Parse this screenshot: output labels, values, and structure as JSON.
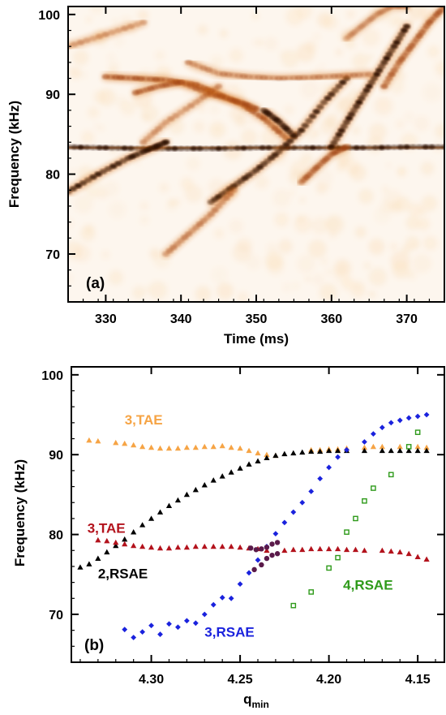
{
  "chart_data": [
    {
      "panel_label": "(a)",
      "type": "heatmap",
      "xlabel": "Time (ms)",
      "ylabel": "Frequency (kHz)",
      "xlim": [
        325,
        375
      ],
      "ylim": [
        64,
        101
      ],
      "xticks": [
        330,
        340,
        350,
        360,
        370
      ],
      "yticks": [
        70,
        80,
        90,
        100
      ],
      "colors": {
        "high": "#2a0c02",
        "mid": "#d9731e",
        "low": "#fbe3c4",
        "background": "#fdf6ee"
      },
      "ridges": [
        {
          "x": [
            325,
            330,
            335,
            340,
            345,
            350,
            355,
            360,
            365,
            370,
            375
          ],
          "y": [
            83.4,
            83.3,
            83.2,
            83.2,
            83.2,
            83.3,
            83.3,
            83.3,
            83.3,
            83.4,
            83.4
          ],
          "intensity": 0.95
        },
        {
          "x": [
            325,
            329,
            333,
            336,
            338
          ],
          "y": [
            77.8,
            80.0,
            82.0,
            83.2,
            84.0
          ],
          "intensity": 0.9
        },
        {
          "x": [
            330,
            334,
            338,
            342,
            345,
            348,
            351,
            354
          ],
          "y": [
            92.2,
            92.0,
            91.8,
            91.2,
            90.0,
            88.8,
            87.0,
            84.5
          ],
          "intensity": 0.7
        },
        {
          "x": [
            334,
            337,
            340,
            344,
            348,
            350
          ],
          "y": [
            90.2,
            91.0,
            91.5,
            90.0,
            89.0,
            88.2
          ],
          "intensity": 0.55
        },
        {
          "x": [
            344,
            347,
            350,
            353,
            356,
            359,
            362
          ],
          "y": [
            76.5,
            78.5,
            80.5,
            82.8,
            85.5,
            89.0,
            92.0
          ],
          "intensity": 0.85
        },
        {
          "x": [
            360,
            362,
            364,
            366,
            368,
            370
          ],
          "y": [
            83.4,
            86.5,
            89.5,
            92.5,
            95.5,
            98.5
          ],
          "intensity": 0.95
        },
        {
          "x": [
            356,
            358,
            360,
            362
          ],
          "y": [
            79.0,
            80.8,
            82.5,
            83.4
          ],
          "intensity": 0.6
        },
        {
          "x": [
            367,
            369,
            371,
            373,
            375
          ],
          "y": [
            91.0,
            94.0,
            96.5,
            99.0,
            101.0
          ],
          "intensity": 0.65
        },
        {
          "x": [
            335,
            338,
            342,
            345
          ],
          "y": [
            84.0,
            86.5,
            89.0,
            91.0
          ],
          "intensity": 0.35
        },
        {
          "x": [
            338,
            341,
            344,
            347
          ],
          "y": [
            70.0,
            72.5,
            75.0,
            78.0
          ],
          "intensity": 0.45
        },
        {
          "x": [
            325,
            330,
            335
          ],
          "y": [
            96.0,
            97.5,
            99.0
          ],
          "intensity": 0.35
        },
        {
          "x": [
            341,
            345,
            349,
            353,
            357,
            361,
            365
          ],
          "y": [
            94.0,
            92.6,
            92.2,
            92.0,
            92.1,
            92.3,
            92.5
          ],
          "intensity": 0.4
        },
        {
          "x": [
            362,
            364,
            366,
            368,
            370
          ],
          "y": [
            97.0,
            98.5,
            100.0,
            101.0,
            101.0
          ],
          "intensity": 0.3
        },
        {
          "x": [
            351,
            353,
            355
          ],
          "y": [
            88.0,
            86.6,
            84.8
          ],
          "intensity": 0.9
        }
      ]
    },
    {
      "panel_label": "(b)",
      "type": "scatter",
      "xlabel": "q",
      "xlabel_sub": "min",
      "ylabel": "Frequency (kHz)",
      "xlim": [
        4.345,
        4.135
      ],
      "ylim": [
        64,
        101
      ],
      "xticks": [
        4.3,
        4.25,
        4.2,
        4.15
      ],
      "xtick_labels": [
        "4.30",
        "4.25",
        "4.20",
        "4.15"
      ],
      "yticks": [
        70,
        80,
        90,
        100
      ],
      "series": [
        {
          "name": "3,TAE",
          "color": "#f6a445",
          "marker": "triangle",
          "label_at": [
            4.315,
            93.8
          ],
          "x": [
            4.335,
            4.33,
            4.32,
            4.315,
            4.31,
            4.305,
            4.3,
            4.295,
            4.29,
            4.285,
            4.28,
            4.275,
            4.27,
            4.265,
            4.26,
            4.255,
            4.25,
            4.245,
            4.24,
            4.235,
            4.23,
            4.21,
            4.205,
            4.2,
            4.195,
            4.19,
            4.18,
            4.175,
            4.17,
            4.16,
            4.15,
            4.145
          ],
          "y": [
            91.8,
            91.7,
            91.5,
            91.4,
            91.2,
            91.0,
            90.9,
            90.8,
            90.8,
            90.8,
            90.9,
            90.9,
            91.0,
            91.0,
            91.1,
            90.9,
            90.8,
            90.5,
            90.2,
            90.0,
            89.9,
            90.6,
            90.6,
            90.7,
            90.7,
            90.8,
            90.9,
            91.0,
            91.0,
            91.0,
            91.0,
            90.9
          ]
        },
        {
          "name": "2,RSAE",
          "color": "#000000",
          "marker": "triangle",
          "label_at": [
            4.33,
            74.5
          ],
          "x": [
            4.34,
            4.335,
            4.33,
            4.325,
            4.32,
            4.315,
            4.31,
            4.305,
            4.3,
            4.295,
            4.29,
            4.285,
            4.28,
            4.275,
            4.27,
            4.265,
            4.26,
            4.255,
            4.25,
            4.245,
            4.24,
            4.235,
            4.23,
            4.225,
            4.22,
            4.215,
            4.21,
            4.205,
            4.2,
            4.195,
            4.19,
            4.18,
            4.17,
            4.165,
            4.16,
            4.155,
            4.15,
            4.145
          ],
          "y": [
            75.9,
            76.3,
            77.0,
            77.8,
            78.6,
            79.4,
            80.3,
            81.2,
            82.0,
            82.8,
            83.6,
            84.3,
            85.0,
            85.6,
            86.2,
            86.8,
            87.3,
            87.8,
            88.3,
            88.8,
            89.2,
            89.6,
            89.9,
            90.1,
            90.2,
            90.3,
            90.4,
            90.4,
            90.5,
            90.5,
            90.5,
            90.5,
            90.5,
            90.5,
            90.5,
            90.5,
            90.5,
            90.5
          ]
        },
        {
          "name": "3,TAE",
          "color": "#b3121c",
          "marker": "triangle",
          "label_at": [
            4.336,
            80.2
          ],
          "x": [
            4.33,
            4.325,
            4.32,
            4.315,
            4.31,
            4.305,
            4.3,
            4.295,
            4.29,
            4.285,
            4.28,
            4.275,
            4.27,
            4.265,
            4.26,
            4.255,
            4.25,
            4.245,
            4.24,
            4.235,
            4.225,
            4.22,
            4.215,
            4.21,
            4.205,
            4.2,
            4.195,
            4.19,
            4.185,
            4.18,
            4.17,
            4.165,
            4.16,
            4.155,
            4.15,
            4.145
          ],
          "y": [
            79.3,
            79.2,
            79.0,
            78.8,
            78.6,
            78.5,
            78.4,
            78.3,
            78.3,
            78.4,
            78.4,
            78.5,
            78.5,
            78.5,
            78.5,
            78.5,
            78.4,
            78.3,
            78.2,
            78.0,
            78.0,
            78.1,
            78.1,
            78.2,
            78.2,
            78.2,
            78.2,
            78.1,
            78.1,
            78.0,
            78.0,
            77.9,
            77.8,
            77.6,
            77.2,
            76.9
          ]
        },
        {
          "name": "3,RSAE",
          "color": "#1a22dd",
          "marker": "diamond",
          "label_at": [
            4.27,
            67.2
          ],
          "x": [
            4.315,
            4.31,
            4.305,
            4.3,
            4.295,
            4.29,
            4.285,
            4.28,
            4.275,
            4.27,
            4.265,
            4.26,
            4.255,
            4.25,
            4.245,
            4.24,
            4.235,
            4.23,
            4.225,
            4.22,
            4.215,
            4.21,
            4.205,
            4.2,
            4.195,
            4.19,
            4.18,
            4.175,
            4.17,
            4.165,
            4.16,
            4.155,
            4.15,
            4.145
          ],
          "y": [
            68.1,
            67.1,
            67.8,
            68.6,
            67.5,
            68.8,
            68.4,
            69.2,
            68.9,
            70.0,
            71.2,
            72.1,
            72.0,
            73.8,
            75.2,
            76.8,
            78.5,
            80.1,
            81.5,
            82.8,
            84.0,
            85.4,
            87.0,
            88.4,
            89.7,
            90.6,
            91.6,
            92.6,
            93.4,
            94.0,
            94.3,
            94.6,
            94.8,
            95.0
          ]
        },
        {
          "name": "4,RSAE",
          "color": "#2e9a1a",
          "marker": "square",
          "label_at": [
            4.192,
            73.1
          ],
          "x": [
            4.22,
            4.21,
            4.2,
            4.195,
            4.19,
            4.185,
            4.18,
            4.175,
            4.165,
            4.155,
            4.15
          ],
          "y": [
            71.1,
            72.8,
            75.8,
            77.1,
            80.3,
            82.0,
            84.2,
            85.8,
            87.5,
            91.0,
            92.8
          ]
        }
      ]
    }
  ]
}
